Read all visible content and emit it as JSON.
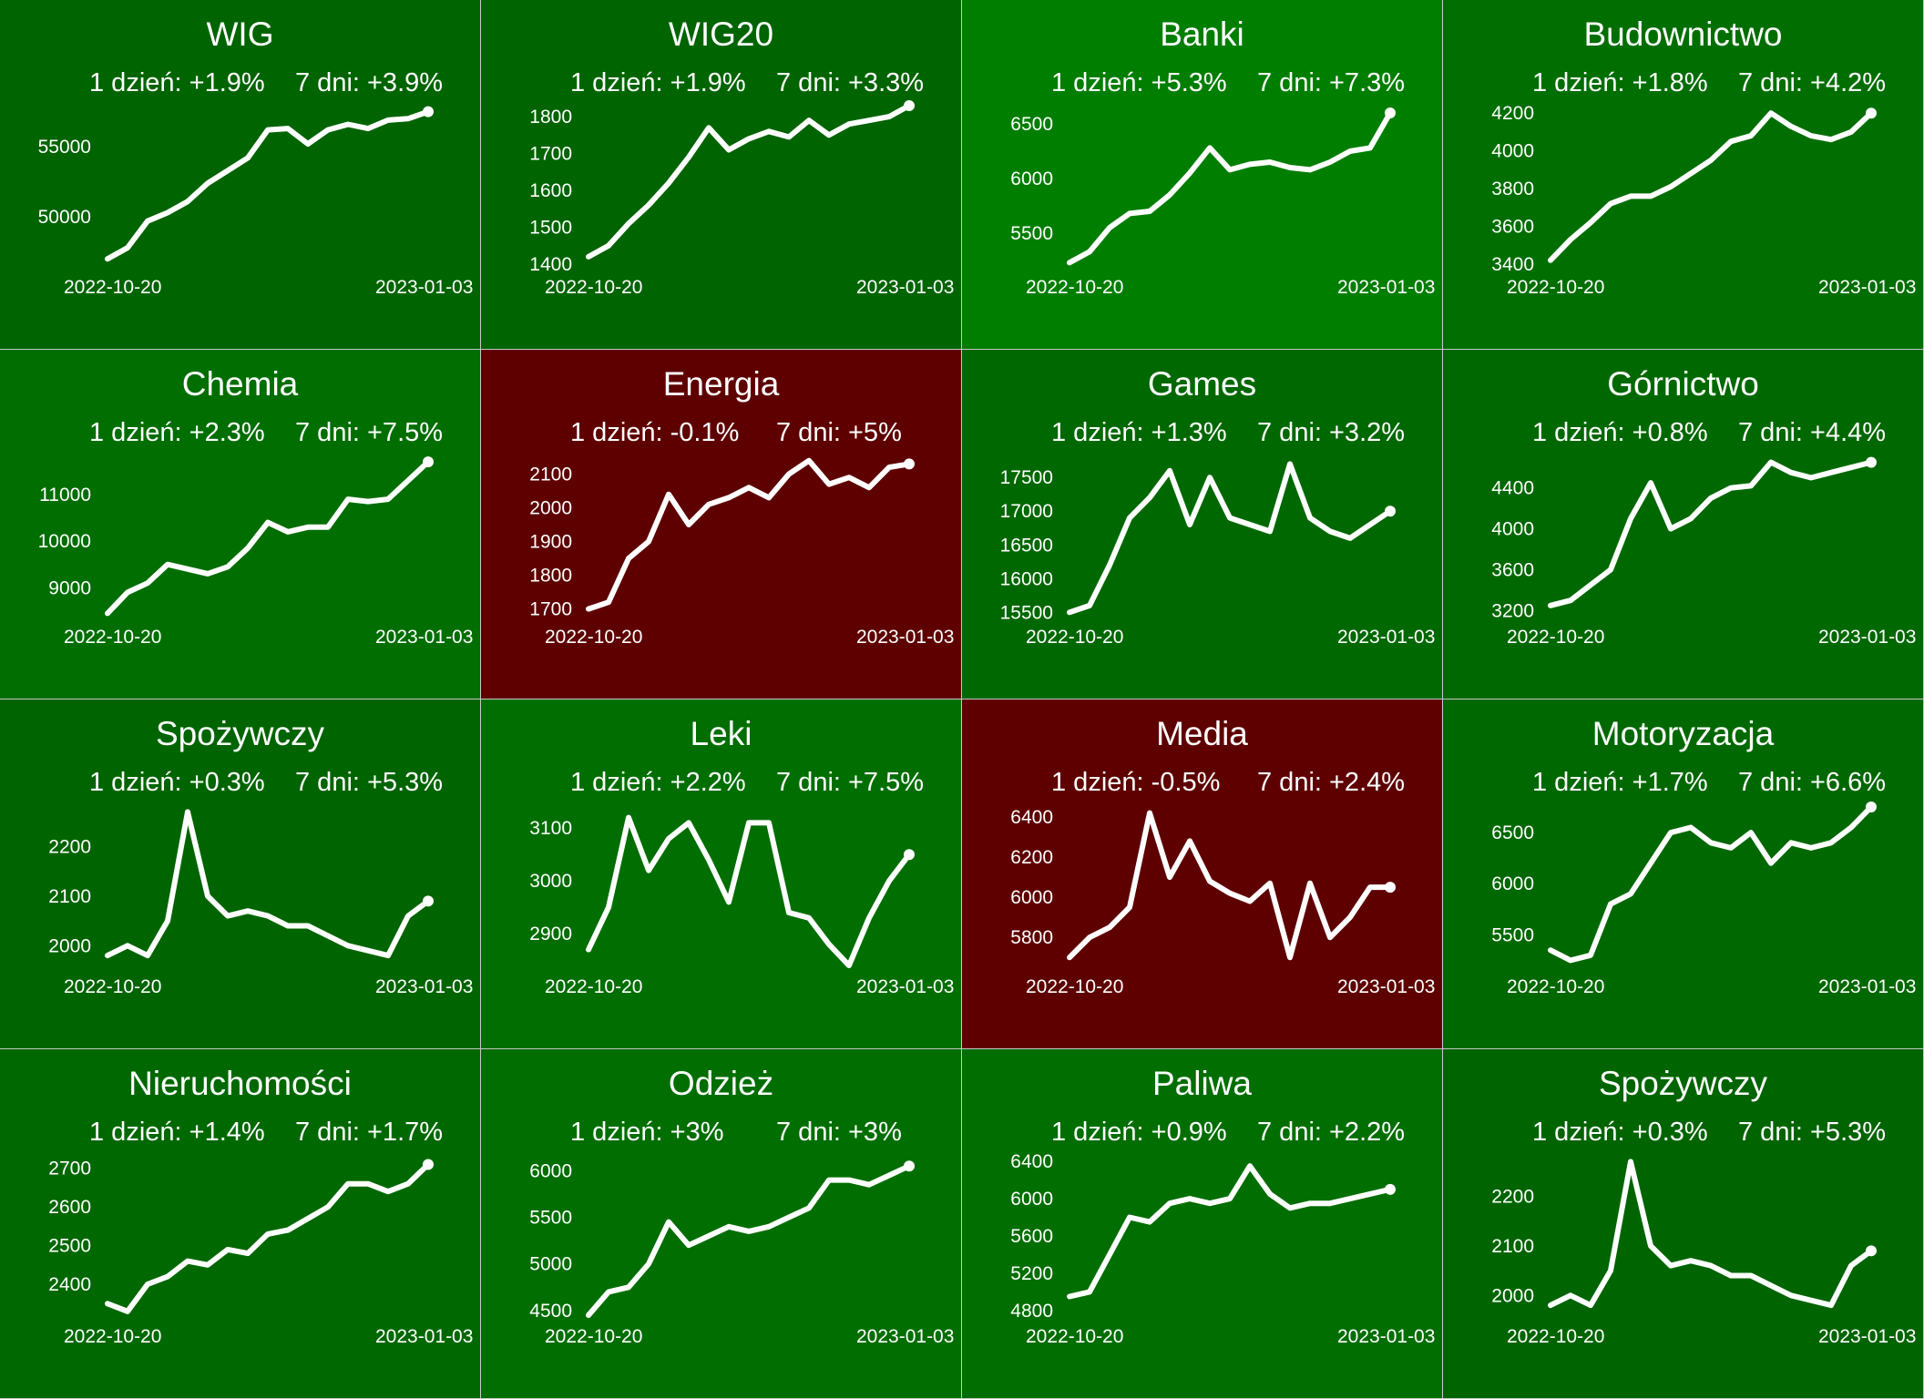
{
  "chart_data": [
    {
      "type": "line",
      "title": "WIG",
      "change_1d_label": "1 dzień: +1.9%",
      "change_7d_label": "7 dni: +3.9%",
      "x_start": "2022-10-20",
      "x_end": "2023-01-03",
      "yticks": [
        50000,
        55000
      ],
      "ylim": [
        46500,
        57800
      ],
      "bg": "#006400",
      "values": [
        47000,
        47800,
        49700,
        50300,
        51100,
        52400,
        53300,
        54200,
        56200,
        56300,
        55200,
        56200,
        56600,
        56300,
        56900,
        57000,
        57500
      ]
    },
    {
      "type": "line",
      "title": "WIG20",
      "change_1d_label": "1 dzień: +1.9%",
      "change_7d_label": "7 dni: +3.3%",
      "x_start": "2022-10-20",
      "x_end": "2023-01-03",
      "yticks": [
        1400,
        1500,
        1600,
        1700,
        1800
      ],
      "ylim": [
        1395,
        1825
      ],
      "bg": "#006400",
      "values": [
        1420,
        1450,
        1510,
        1560,
        1620,
        1690,
        1770,
        1710,
        1740,
        1760,
        1745,
        1790,
        1750,
        1780,
        1790,
        1800,
        1830
      ]
    },
    {
      "type": "line",
      "title": "Banki",
      "change_1d_label": "1 dzień: +5.3%",
      "change_7d_label": "7 dni: +7.3%",
      "x_start": "2022-10-20",
      "x_end": "2023-01-03",
      "yticks": [
        5500,
        6000,
        6500
      ],
      "ylim": [
        5200,
        6650
      ],
      "bg": "#007e00",
      "values": [
        5230,
        5330,
        5550,
        5680,
        5700,
        5850,
        6050,
        6280,
        6080,
        6130,
        6150,
        6100,
        6080,
        6150,
        6250,
        6280,
        6600
      ]
    },
    {
      "type": "line",
      "title": "Budownictwo",
      "change_1d_label": "1 dzień: +1.8%",
      "change_7d_label": "7 dni: +4.2%",
      "x_start": "2022-10-20",
      "x_end": "2023-01-03",
      "yticks": [
        3400,
        3600,
        3800,
        4000,
        4200
      ],
      "ylim": [
        3390,
        4230
      ],
      "bg": "#006e00",
      "values": [
        3420,
        3530,
        3620,
        3720,
        3760,
        3760,
        3810,
        3880,
        3950,
        4050,
        4080,
        4200,
        4130,
        4080,
        4060,
        4100,
        4200
      ]
    },
    {
      "type": "line",
      "title": "Chemia",
      "change_1d_label": "1 dzień: +2.3%",
      "change_7d_label": "7 dni: +7.5%",
      "x_start": "2022-10-20",
      "x_end": "2023-01-03",
      "yticks": [
        9000,
        10000,
        11000
      ],
      "ylim": [
        8400,
        11800
      ],
      "bg": "#006e00",
      "values": [
        8450,
        8900,
        9100,
        9500,
        9400,
        9300,
        9450,
        9850,
        10400,
        10200,
        10300,
        10300,
        10900,
        10850,
        10900,
        11300,
        11700
      ]
    },
    {
      "type": "line",
      "title": "Energia",
      "change_1d_label": "1 dzień: -0.1%",
      "change_7d_label": "7 dni: +5%",
      "x_start": "2022-10-20",
      "x_end": "2023-01-03",
      "yticks": [
        1700,
        1800,
        1900,
        2000,
        2100
      ],
      "ylim": [
        1680,
        2150
      ],
      "bg": "#5e0000",
      "values": [
        1700,
        1720,
        1850,
        1900,
        2040,
        1950,
        2010,
        2030,
        2060,
        2030,
        2100,
        2140,
        2070,
        2090,
        2060,
        2120,
        2130
      ]
    },
    {
      "type": "line",
      "title": "Games",
      "change_1d_label": "1 dzień: +1.3%",
      "change_7d_label": "7 dni: +3.2%",
      "x_start": "2022-10-20",
      "x_end": "2023-01-03",
      "yticks": [
        15500,
        16000,
        16500,
        17000,
        17500
      ],
      "ylim": [
        15450,
        17800
      ],
      "bg": "#006800",
      "values": [
        15500,
        15600,
        16200,
        16900,
        17200,
        17600,
        16800,
        17500,
        16900,
        16800,
        16700,
        17700,
        16900,
        16700,
        16600,
        16800,
        17000
      ]
    },
    {
      "type": "line",
      "title": "Górnictwo",
      "change_1d_label": "1 dzień: +0.8%",
      "change_7d_label": "7 dni: +4.4%",
      "x_start": "2022-10-20",
      "x_end": "2023-01-03",
      "yticks": [
        3200,
        3600,
        4000,
        4400
      ],
      "ylim": [
        3150,
        4700
      ],
      "bg": "#006800",
      "values": [
        3250,
        3300,
        3450,
        3600,
        4100,
        4450,
        4000,
        4100,
        4300,
        4400,
        4420,
        4650,
        4550,
        4500,
        4550,
        4600,
        4650
      ]
    },
    {
      "type": "line",
      "title": "Spożywczy",
      "change_1d_label": "1 dzień: +0.3%",
      "change_7d_label": "7 dni: +5.3%",
      "x_start": "2022-10-20",
      "x_end": "2023-01-03",
      "yticks": [
        2000,
        2100,
        2200
      ],
      "ylim": [
        1960,
        2280
      ],
      "bg": "#006400",
      "values": [
        1980,
        2000,
        1980,
        2050,
        2270,
        2100,
        2060,
        2070,
        2060,
        2040,
        2040,
        2020,
        2000,
        1990,
        1980,
        2060,
        2090
      ]
    },
    {
      "type": "line",
      "title": "Leki",
      "change_1d_label": "1 dzień: +2.2%",
      "change_7d_label": "7 dni: +7.5%",
      "x_start": "2022-10-20",
      "x_end": "2023-01-03",
      "yticks": [
        2900,
        3000,
        3100
      ],
      "ylim": [
        2840,
        3140
      ],
      "bg": "#006e00",
      "values": [
        2870,
        2950,
        3120,
        3020,
        3080,
        3110,
        3040,
        2960,
        3110,
        3110,
        2940,
        2930,
        2880,
        2840,
        2930,
        3000,
        3050
      ]
    },
    {
      "type": "line",
      "title": "Media",
      "change_1d_label": "1 dzień: -0.5%",
      "change_7d_label": "7 dni: +2.4%",
      "x_start": "2022-10-20",
      "x_end": "2023-01-03",
      "yticks": [
        5800,
        6000,
        6200,
        6400
      ],
      "ylim": [
        5660,
        6450
      ],
      "bg": "#5e0000",
      "values": [
        5700,
        5800,
        5850,
        5950,
        6420,
        6100,
        6280,
        6080,
        6020,
        5980,
        6070,
        5700,
        6070,
        5800,
        5900,
        6050,
        6050
      ]
    },
    {
      "type": "line",
      "title": "Motoryzacja",
      "change_1d_label": "1 dzień: +1.7%",
      "change_7d_label": "7 dni: +6.6%",
      "x_start": "2022-10-20",
      "x_end": "2023-01-03",
      "yticks": [
        5500,
        6000,
        6500
      ],
      "ylim": [
        5200,
        6750
      ],
      "bg": "#006800",
      "values": [
        5350,
        5250,
        5300,
        5800,
        5900,
        6200,
        6500,
        6550,
        6400,
        6350,
        6500,
        6200,
        6400,
        6350,
        6400,
        6550,
        6750
      ]
    },
    {
      "type": "line",
      "title": "Nieruchomości",
      "change_1d_label": "1 dzień: +1.4%",
      "change_7d_label": "7 dni: +1.7%",
      "x_start": "2022-10-20",
      "x_end": "2023-01-03",
      "yticks": [
        2400,
        2500,
        2600,
        2700
      ],
      "ylim": [
        2320,
        2730
      ],
      "bg": "#006800",
      "values": [
        2350,
        2330,
        2400,
        2420,
        2460,
        2450,
        2490,
        2480,
        2530,
        2540,
        2570,
        2600,
        2660,
        2660,
        2640,
        2660,
        2710
      ]
    },
    {
      "type": "line",
      "title": "Odzież",
      "change_1d_label": "1 dzień: +3%",
      "change_7d_label": "7 dni: +3%",
      "x_start": "2022-10-20",
      "x_end": "2023-01-03",
      "yticks": [
        4500,
        5000,
        5500,
        6000
      ],
      "ylim": [
        4450,
        6150
      ],
      "bg": "#006e00",
      "values": [
        4450,
        4700,
        4750,
        5000,
        5450,
        5200,
        5300,
        5400,
        5350,
        5400,
        5500,
        5600,
        5900,
        5900,
        5850,
        5950,
        6050
      ]
    },
    {
      "type": "line",
      "title": "Paliwa",
      "change_1d_label": "1 dzień: +0.9%",
      "change_7d_label": "7 dni: +2.2%",
      "x_start": "2022-10-20",
      "x_end": "2023-01-03",
      "yticks": [
        4800,
        5200,
        5600,
        6000,
        6400
      ],
      "ylim": [
        4750,
        6450
      ],
      "bg": "#006e00",
      "values": [
        4950,
        5000,
        5400,
        5800,
        5750,
        5950,
        6000,
        5950,
        6000,
        6350,
        6050,
        5900,
        5950,
        5950,
        6000,
        6050,
        6100
      ]
    },
    {
      "type": "line",
      "title": "Spożywczy",
      "change_1d_label": "1 dzień: +0.3%",
      "change_7d_label": "7 dni: +5.3%",
      "x_start": "2022-10-20",
      "x_end": "2023-01-03",
      "yticks": [
        2000,
        2100,
        2200
      ],
      "ylim": [
        1960,
        2280
      ],
      "bg": "#006400",
      "values": [
        1980,
        2000,
        1980,
        2050,
        2270,
        2100,
        2060,
        2070,
        2060,
        2040,
        2040,
        2020,
        2000,
        1990,
        1980,
        2060,
        2090
      ]
    }
  ]
}
